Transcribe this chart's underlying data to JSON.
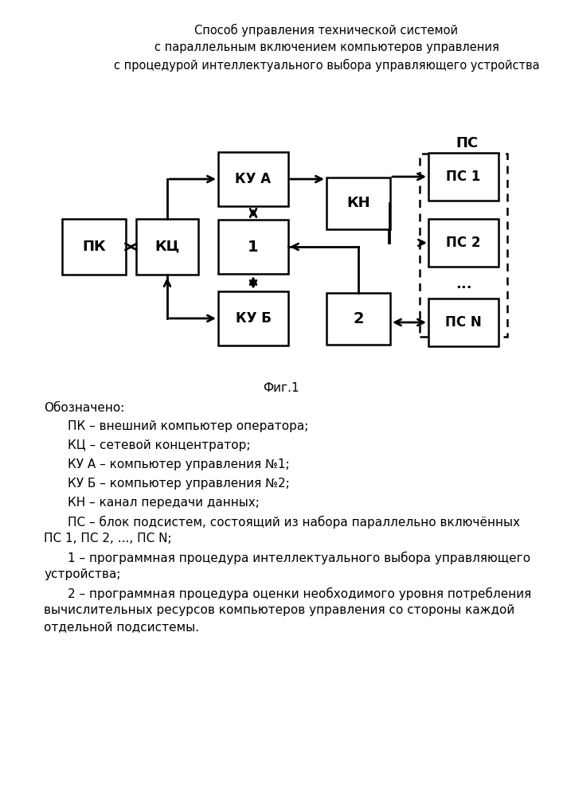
{
  "title_line1": "Способ управления технической системой",
  "title_line2": "с параллельным включением компьютеров управления",
  "title_line3": "с процедурой интеллектуального выбора управляющего устройства",
  "fig_label": "Фиг.1",
  "legend_title": "Обозначено:",
  "legend_lines": [
    "ПК – внешний компьютер оператора;",
    "КЦ – сетевой концентратор;",
    "КУ А – компьютер управления №1;",
    "КУ Б – компьютер управления №2;",
    "КН – канал передачи данных;",
    "ПС – блок подсистем, состоящий из набора параллельно включённых\nПС 1, ПС 2, ..., ПС N;",
    "1 – программная процедура интеллектуального выбора управляющего\nустройства;",
    "2 – программная процедура оценки необходимого уровня потребления\nвычислительных ресурсов компьютеров управления со стороны каждой\nотдельной подсистемы."
  ],
  "bg_color": "#ffffff",
  "box_color": "#000000",
  "text_color": "#000000"
}
